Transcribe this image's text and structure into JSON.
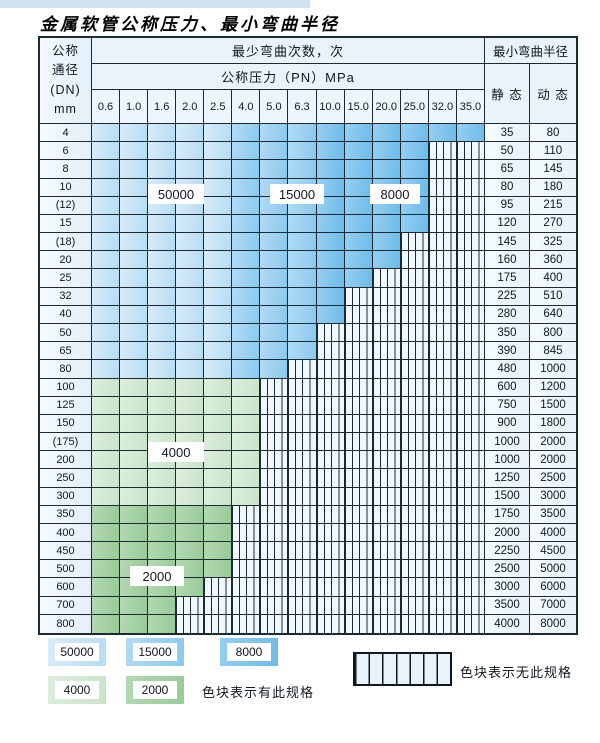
{
  "title": "金属软管公称压力、最小弯曲半径",
  "table": {
    "dn_header_lines": [
      "公称",
      "通径",
      "(DN)",
      "mm"
    ],
    "bend_times_header": "最少弯曲次数，次",
    "pressure_header": "公称压力（PN）MPa",
    "radius_header": "最小弯曲半径",
    "static_header": "静 态",
    "dynamic_header": "动 态",
    "pressure_columns": [
      "0.6",
      "1.0",
      "1.6",
      "2.0",
      "2.5",
      "4.0",
      "5.0",
      "6.3",
      "10.0",
      "15.0",
      "20.0",
      "25.0",
      "32.0",
      "35.0"
    ],
    "blue_zones": [
      {
        "cycles": "50000",
        "from": 0,
        "to": 4
      },
      {
        "cycles": "15000",
        "from": 5,
        "to": 7
      },
      {
        "cycles": "8000",
        "from": 8,
        "to": 13
      }
    ],
    "rows": [
      {
        "dn": "4",
        "zone": "blue",
        "colored": 14,
        "static": "35",
        "dynamic": "80"
      },
      {
        "dn": "6",
        "zone": "blue",
        "colored": 12,
        "static": "50",
        "dynamic": "110"
      },
      {
        "dn": "8",
        "zone": "blue",
        "colored": 12,
        "static": "65",
        "dynamic": "145"
      },
      {
        "dn": "10",
        "zone": "blue",
        "colored": 12,
        "static": "80",
        "dynamic": "180"
      },
      {
        "dn": "(12)",
        "zone": "blue",
        "colored": 12,
        "static": "95",
        "dynamic": "215"
      },
      {
        "dn": "15",
        "zone": "blue",
        "colored": 12,
        "static": "120",
        "dynamic": "270"
      },
      {
        "dn": "(18)",
        "zone": "blue",
        "colored": 11,
        "static": "145",
        "dynamic": "325"
      },
      {
        "dn": "20",
        "zone": "blue",
        "colored": 11,
        "static": "160",
        "dynamic": "360"
      },
      {
        "dn": "25",
        "zone": "blue",
        "colored": 10,
        "static": "175",
        "dynamic": "400"
      },
      {
        "dn": "32",
        "zone": "blue",
        "colored": 9,
        "static": "225",
        "dynamic": "510"
      },
      {
        "dn": "40",
        "zone": "blue",
        "colored": 9,
        "static": "280",
        "dynamic": "640"
      },
      {
        "dn": "50",
        "zone": "blue",
        "colored": 8,
        "static": "350",
        "dynamic": "800"
      },
      {
        "dn": "65",
        "zone": "blue",
        "colored": 8,
        "static": "390",
        "dynamic": "845"
      },
      {
        "dn": "80",
        "zone": "blue",
        "colored": 7,
        "static": "480",
        "dynamic": "1000"
      },
      {
        "dn": "100",
        "zone": "4000",
        "colored": 6,
        "static": "600",
        "dynamic": "1200"
      },
      {
        "dn": "125",
        "zone": "4000",
        "colored": 6,
        "static": "750",
        "dynamic": "1500"
      },
      {
        "dn": "150",
        "zone": "4000",
        "colored": 6,
        "static": "900",
        "dynamic": "1800"
      },
      {
        "dn": "(175)",
        "zone": "4000",
        "colored": 6,
        "static": "1000",
        "dynamic": "2000"
      },
      {
        "dn": "200",
        "zone": "4000",
        "colored": 6,
        "static": "1000",
        "dynamic": "2000"
      },
      {
        "dn": "250",
        "zone": "4000",
        "colored": 6,
        "static": "1250",
        "dynamic": "2500"
      },
      {
        "dn": "300",
        "zone": "4000",
        "colored": 6,
        "static": "1500",
        "dynamic": "3000"
      },
      {
        "dn": "350",
        "zone": "2000",
        "colored": 5,
        "static": "1750",
        "dynamic": "3500"
      },
      {
        "dn": "400",
        "zone": "2000",
        "colored": 5,
        "static": "2000",
        "dynamic": "4000"
      },
      {
        "dn": "450",
        "zone": "2000",
        "colored": 5,
        "static": "2250",
        "dynamic": "4500"
      },
      {
        "dn": "500",
        "zone": "2000",
        "colored": 5,
        "static": "2500",
        "dynamic": "5000"
      },
      {
        "dn": "600",
        "zone": "2000",
        "colored": 4,
        "static": "3000",
        "dynamic": "6000"
      },
      {
        "dn": "700",
        "zone": "2000",
        "colored": 3,
        "static": "3500",
        "dynamic": "7000"
      },
      {
        "dn": "800",
        "zone": "2000",
        "colored": 3,
        "static": "4000",
        "dynamic": "8000"
      }
    ]
  },
  "zone_tags": {
    "t50000": "50000",
    "t15000": "15000",
    "t8000": "8000",
    "t4000": "4000",
    "t2000": "2000"
  },
  "legend": {
    "items": [
      {
        "label": "50000",
        "color": "#b7dcf4"
      },
      {
        "label": "15000",
        "color": "#8bc9ee"
      },
      {
        "label": "8000",
        "color": "#6dbbe8"
      },
      {
        "label": "4000",
        "color": "#c9e4c9"
      },
      {
        "label": "2000",
        "color": "#97cb97"
      }
    ],
    "has_spec_text": "色块表示有此规格",
    "no_spec_text": "色块表示无此规格"
  },
  "colors": {
    "cycles_50000": "#b7dcf4",
    "cycles_15000": "#8bc9ee",
    "cycles_8000": "#6dbbe8",
    "cycles_4000": "#c9e4c9",
    "cycles_2000": "#97cb97",
    "no_spec_background": "#f0f7fd",
    "grid_line": "#1c2b33",
    "header_background": "#e9f3fb"
  }
}
